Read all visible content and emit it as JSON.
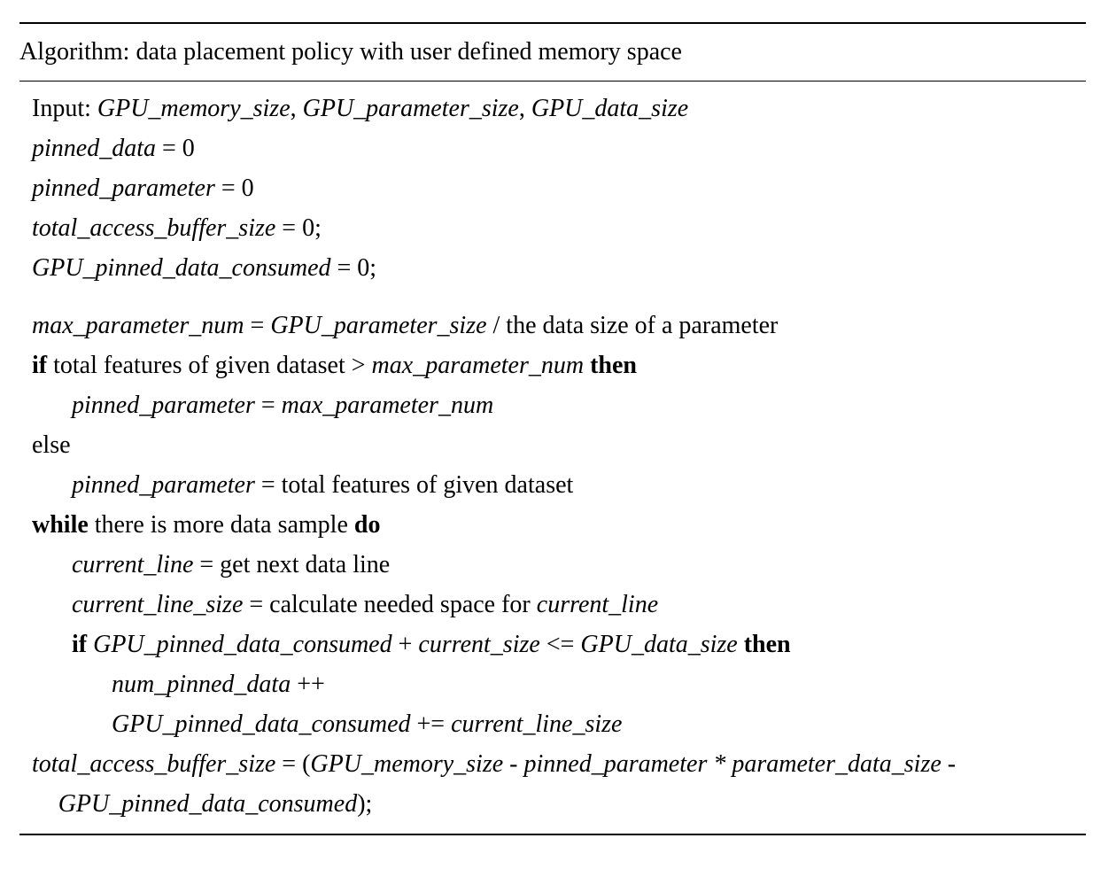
{
  "title": "Algorithm: data placement policy with user defined memory space",
  "lines": [
    {
      "indent": 0,
      "segments": [
        {
          "t": "Input: ",
          "s": ""
        },
        {
          "t": "GPU_memory_size",
          "s": "i"
        },
        {
          "t": ", ",
          "s": ""
        },
        {
          "t": "GPU_parameter_size",
          "s": "i"
        },
        {
          "t": ", ",
          "s": ""
        },
        {
          "t": "GPU_data_size",
          "s": "i"
        }
      ]
    },
    {
      "indent": 0,
      "segments": [
        {
          "t": "pinned_data",
          "s": "i"
        },
        {
          "t": " = 0",
          "s": ""
        }
      ]
    },
    {
      "indent": 0,
      "segments": [
        {
          "t": "pinned_parameter",
          "s": "i"
        },
        {
          "t": " = 0",
          "s": ""
        }
      ]
    },
    {
      "indent": 0,
      "segments": [
        {
          "t": "total_access_buffer_size",
          "s": "i"
        },
        {
          "t": " = 0;",
          "s": ""
        }
      ]
    },
    {
      "indent": 0,
      "segments": [
        {
          "t": "GPU_pinned_data_consumed",
          "s": "i"
        },
        {
          "t": " = 0;",
          "s": ""
        }
      ]
    },
    {
      "indent": 0,
      "segments": [
        {
          "t": "max_parameter_num",
          "s": "i"
        },
        {
          "t": " = ",
          "s": ""
        },
        {
          "t": "GPU_parameter_size",
          "s": "i"
        },
        {
          "t": " / the data size of a parameter",
          "s": ""
        }
      ]
    },
    {
      "indent": 0,
      "segments": [
        {
          "t": "if",
          "s": "b"
        },
        {
          "t": " total features of given dataset > ",
          "s": ""
        },
        {
          "t": "max_parameter_num",
          "s": "i"
        },
        {
          "t": " ",
          "s": ""
        },
        {
          "t": "then",
          "s": "b"
        }
      ]
    },
    {
      "indent": 1,
      "segments": [
        {
          "t": "pinned_parameter",
          "s": "i"
        },
        {
          "t": " = ",
          "s": ""
        },
        {
          "t": "max_parameter_num",
          "s": "i"
        }
      ]
    },
    {
      "indent": 0,
      "segments": [
        {
          "t": "else",
          "s": ""
        }
      ]
    },
    {
      "indent": 1,
      "segments": [
        {
          "t": "pinned_parameter",
          "s": "i"
        },
        {
          "t": " = total features of given dataset",
          "s": ""
        }
      ]
    },
    {
      "indent": 0,
      "segments": [
        {
          "t": "while",
          "s": "b"
        },
        {
          "t": " there is more data sample ",
          "s": ""
        },
        {
          "t": "do",
          "s": "b"
        }
      ]
    },
    {
      "indent": 1,
      "segments": [
        {
          "t": "current_line",
          "s": "i"
        },
        {
          "t": " = get next data line",
          "s": ""
        }
      ]
    },
    {
      "indent": 1,
      "segments": [
        {
          "t": "current_line_size",
          "s": "i"
        },
        {
          "t": " = calculate needed space for ",
          "s": ""
        },
        {
          "t": "current_line",
          "s": "i"
        }
      ]
    },
    {
      "indent": 1,
      "segments": [
        {
          "t": "if",
          "s": "b"
        },
        {
          "t": " ",
          "s": ""
        },
        {
          "t": "GPU_pinned_data_consumed",
          "s": "i"
        },
        {
          "t": " + ",
          "s": ""
        },
        {
          "t": "current_size",
          "s": "i"
        },
        {
          "t": " <= ",
          "s": ""
        },
        {
          "t": "GPU_data_size",
          "s": "i"
        },
        {
          "t": " ",
          "s": ""
        },
        {
          "t": "then",
          "s": "b"
        }
      ]
    },
    {
      "indent": 2,
      "segments": [
        {
          "t": "num_pinned_data",
          "s": "i"
        },
        {
          "t": " ++",
          "s": ""
        }
      ]
    },
    {
      "indent": 2,
      "segments": [
        {
          "t": "GPU_pinned_data_consumed",
          "s": "i"
        },
        {
          "t": " += ",
          "s": ""
        },
        {
          "t": "current_line_size",
          "s": "i"
        }
      ]
    },
    {
      "indent": 0,
      "segments": [
        {
          "t": "total_access_buffer_size",
          "s": "i"
        },
        {
          "t": " = (",
          "s": ""
        },
        {
          "t": "GPU_memory_size - pinned_parameter * parameter_data_size -",
          "s": "i"
        }
      ]
    },
    {
      "indent": 0.66,
      "segments": [
        {
          "t": "GPU_pinned_data_consumed",
          "s": "i"
        },
        {
          "t": ");",
          "s": ""
        }
      ]
    }
  ]
}
